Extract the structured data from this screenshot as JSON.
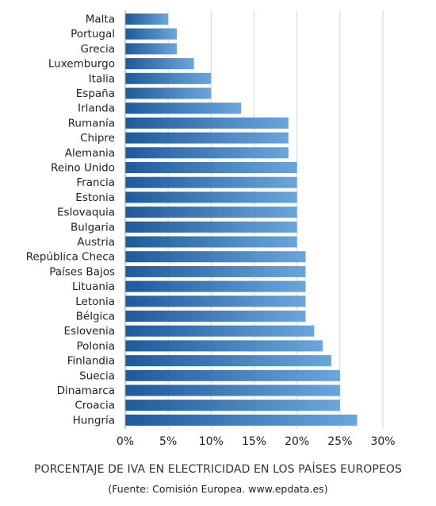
{
  "chart_data": {
    "type": "bar",
    "orientation": "horizontal",
    "title": "PORCENTAJE DE IVA EN ELECTRICIDAD EN LOS PAÍSES EUROPEOS",
    "subtitle": "(Fuente: Comisión Europea. www.epdata.es)",
    "xlabel": "",
    "ylabel": "",
    "xlim": [
      0,
      30
    ],
    "xticks": [
      0,
      5,
      10,
      15,
      20,
      25,
      30
    ],
    "tick_suffix": "%",
    "grid": "vertical",
    "legend": "none",
    "categories": [
      "Malta",
      "Portugal",
      "Grecia",
      "Luxemburgo",
      "Italia",
      "España",
      "Irlanda",
      "Rumanía",
      "Chipre",
      "Alemania",
      "Reino Unido",
      "Francia",
      "Estonia",
      "Eslovaquia",
      "Bulgaria",
      "Austria",
      "República Checa",
      "Países Bajos",
      "Lituania",
      "Letonia",
      "Bélgica",
      "Eslovenia",
      "Polonia",
      "Finlandia",
      "Suecia",
      "Dinamarca",
      "Croacia",
      "Hungría"
    ],
    "values": [
      5,
      6,
      6,
      8,
      10,
      10,
      13.5,
      19,
      19,
      19,
      20,
      20,
      20,
      20,
      20,
      20,
      21,
      21,
      21,
      21,
      21,
      22,
      23,
      24,
      25,
      25,
      25,
      27
    ],
    "colors": {
      "bar_start": "#1f5a9c",
      "bar_end": "#6aa6dc",
      "grid": "#d6d6d6",
      "axis": "#9a9a9a",
      "text": "#222222"
    }
  }
}
